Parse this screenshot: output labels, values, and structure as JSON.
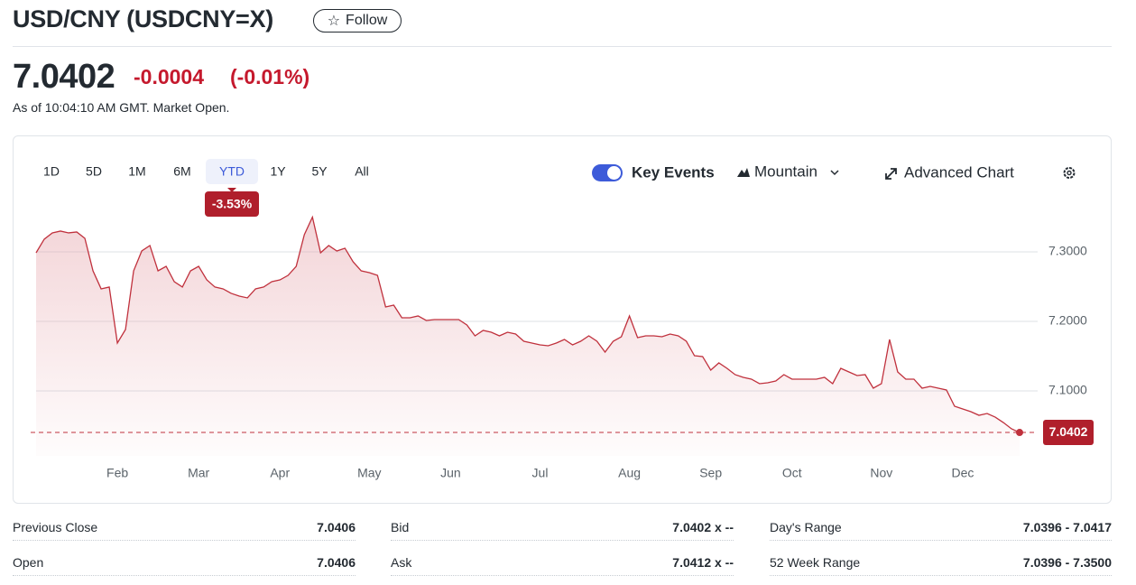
{
  "header": {
    "title": "USD/CNY (USDCNY=X)",
    "follow": "Follow",
    "price": "7.0402",
    "change": "-0.0004",
    "change_pct": "(-0.01%)",
    "as_of": "As of 10:04:10 AM GMT. Market Open."
  },
  "toolbar": {
    "ranges": [
      "1D",
      "5D",
      "1M",
      "6M",
      "YTD",
      "1Y",
      "5Y",
      "All"
    ],
    "key_events": "Key Events",
    "chart_style": "Mountain",
    "advanced_chart": "Advanced Chart"
  },
  "chart_data": {
    "type": "area",
    "annotation": "-3.53%",
    "color": "#c0313d",
    "grid": true,
    "categories": [
      null,
      null,
      null,
      null,
      null,
      null,
      null,
      null,
      null,
      null,
      "Feb",
      null,
      null,
      null,
      null,
      null,
      null,
      null,
      null,
      null,
      "Mar",
      null,
      null,
      null,
      null,
      null,
      null,
      null,
      null,
      null,
      "Apr",
      null,
      null,
      null,
      null,
      null,
      null,
      null,
      null,
      null,
      null,
      "May",
      null,
      null,
      null,
      null,
      null,
      null,
      null,
      null,
      null,
      "Jun",
      null,
      null,
      null,
      null,
      null,
      null,
      null,
      null,
      null,
      null,
      "Jul",
      null,
      null,
      null,
      null,
      null,
      null,
      null,
      null,
      null,
      null,
      "Aug",
      null,
      null,
      null,
      null,
      null,
      null,
      null,
      null,
      null,
      "Sep",
      null,
      null,
      null,
      null,
      null,
      null,
      null,
      null,
      null,
      "Oct",
      null,
      null,
      null,
      null,
      null,
      null,
      null,
      null,
      null,
      null,
      "Nov",
      null,
      null,
      null,
      null,
      null,
      null,
      null,
      null,
      null,
      "Dec",
      null,
      null,
      null,
      null,
      null,
      null,
      null
    ],
    "values": [
      7.2987,
      7.3182,
      7.3273,
      7.3299,
      7.3273,
      7.3286,
      7.3195,
      7.2727,
      7.2468,
      7.2494,
      7.1688,
      7.1883,
      7.2727,
      7.3013,
      7.3091,
      7.2727,
      7.2792,
      7.2571,
      7.2494,
      7.2727,
      7.2792,
      7.2597,
      7.2494,
      7.2468,
      7.2403,
      7.2364,
      7.2338,
      7.2468,
      7.2494,
      7.2571,
      7.2597,
      7.2662,
      7.2792,
      7.3247,
      7.35,
      7.2987,
      7.3091,
      7.3013,
      7.3052,
      7.2857,
      7.2727,
      7.2701,
      7.2662,
      7.2208,
      7.2234,
      7.2052,
      7.2052,
      7.2078,
      7.2013,
      7.2026,
      7.2026,
      7.2026,
      7.2026,
      7.1948,
      7.1792,
      7.187,
      7.1844,
      7.1792,
      7.1844,
      7.1818,
      7.1714,
      7.1688,
      7.1662,
      7.1649,
      7.1688,
      7.174,
      7.1662,
      7.1714,
      7.1792,
      7.1714,
      7.1558,
      7.1714,
      7.1779,
      7.2078,
      7.1766,
      7.1792,
      7.1792,
      7.1779,
      7.1818,
      7.1792,
      7.1714,
      7.1506,
      7.1494,
      7.1299,
      7.1403,
      7.1325,
      7.1234,
      7.1195,
      7.1169,
      7.1104,
      7.1117,
      7.1143,
      7.1234,
      7.1169,
      7.1169,
      7.1169,
      7.1169,
      7.1195,
      7.1104,
      7.1325,
      7.1273,
      7.1221,
      7.1234,
      7.1039,
      7.1104,
      7.174,
      7.1273,
      7.1169,
      7.1169,
      7.1039,
      7.1065,
      7.1039,
      7.1013,
      7.0779,
      7.074,
      7.0701,
      7.0649,
      7.0675,
      7.0623,
      7.0545,
      7.0455,
      7.0402
    ],
    "ylim": [
      7.0065,
      7.3636
    ],
    "yticks": [
      {
        "value": 7.1,
        "label": "7.1000"
      },
      {
        "value": 7.2,
        "label": "7.2000"
      },
      {
        "value": 7.3,
        "label": "7.3000"
      }
    ]
  },
  "stats": [
    [
      "Previous Close",
      "7.0406",
      "Bid",
      "7.0402 x --",
      "Day's Range",
      "7.0396 - 7.0417"
    ],
    [
      "Open",
      "7.0406",
      "Ask",
      "7.0412 x --",
      "52 Week Range",
      "7.0396 - 7.3500"
    ]
  ]
}
